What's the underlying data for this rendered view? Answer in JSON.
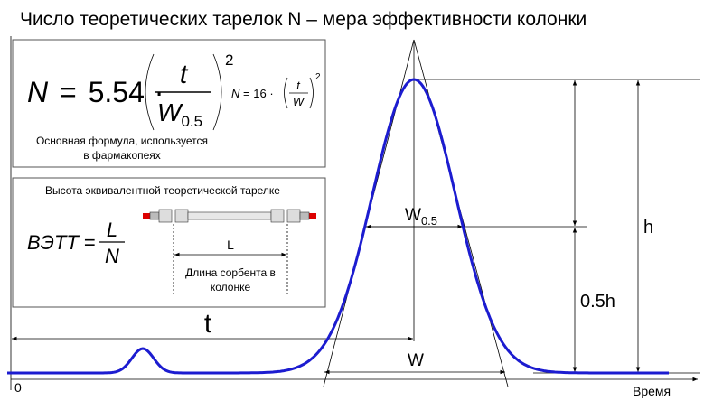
{
  "title": "Число теоретических тарелок N – мера эффективности колонки",
  "formula_box": {
    "main": {
      "lhs": "N",
      "eq": "=",
      "coef": "5.54",
      "dot": "·",
      "num": "t",
      "den": "W",
      "den_sub": "0.5",
      "power": "2"
    },
    "alt": {
      "lhs": "N",
      "eq": "=",
      "coef": "16",
      "dot": "·",
      "num": "t",
      "den": "W",
      "power": "2"
    },
    "caption": [
      "Основная формула, используется",
      "в фармакопеях"
    ]
  },
  "hetp_box": {
    "heading": "Высота эквивалентной теоретической тарелке",
    "formula": {
      "lhs": "ВЭТТ",
      "eq": "=",
      "num": "L",
      "den": "N"
    },
    "length_label": "L",
    "caption": [
      "Длина сорбента в",
      "колонке"
    ]
  },
  "peak_labels": {
    "t": "t",
    "w_half": "W",
    "w_half_sub": "0.5",
    "h": "h",
    "half_h": "0.5h",
    "w": "W"
  },
  "axis": {
    "origin": "0",
    "x_label": "Время"
  }
}
